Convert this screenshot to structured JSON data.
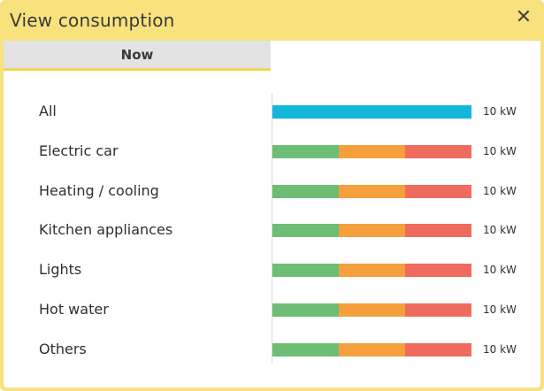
{
  "dialog": {
    "title": "View consumption",
    "close_symbol": "✕"
  },
  "tabs": [
    {
      "label": "Now",
      "active": true
    }
  ],
  "colors": {
    "title_bar": "#f7e27e",
    "all_bar": "#14b6dc",
    "low": "#6dbd75",
    "mid": "#f5a03c",
    "high": "#ef6b5d"
  },
  "rows": [
    {
      "label": "All",
      "value": "10 kW",
      "type": "single"
    },
    {
      "label": "Electric car",
      "value": "10 kW",
      "type": "segmented"
    },
    {
      "label": "Heating / cooling",
      "value": "10 kW",
      "type": "segmented"
    },
    {
      "label": "Kitchen appliances",
      "value": "10 kW",
      "type": "segmented"
    },
    {
      "label": "Lights",
      "value": "10 kW",
      "type": "segmented"
    },
    {
      "label": "Hot water",
      "value": "10 kW",
      "type": "segmented"
    },
    {
      "label": "Others",
      "value": "10 kW",
      "type": "segmented"
    }
  ]
}
